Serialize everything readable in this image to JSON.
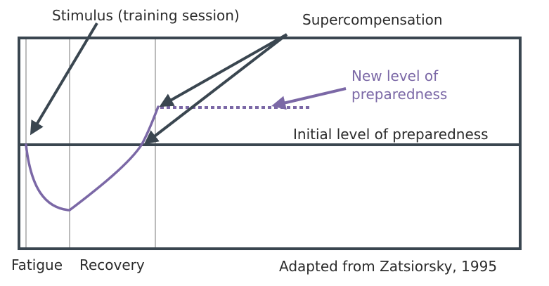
{
  "labels": {
    "stimulus": "Stimulus (training session)",
    "supercompensation": "Supercompensation",
    "new_level_line1": "New level of",
    "new_level_line2": "preparedness",
    "initial_level": "Initial level of preparedness",
    "fatigue": "Fatigue",
    "recovery": "Recovery",
    "source": "Adapted from Zatsiorsky, 1995"
  },
  "colors": {
    "frame": "#3a4650",
    "curve": "#7b68a6",
    "text": "#2b2b2b",
    "guide": "#555555"
  }
}
